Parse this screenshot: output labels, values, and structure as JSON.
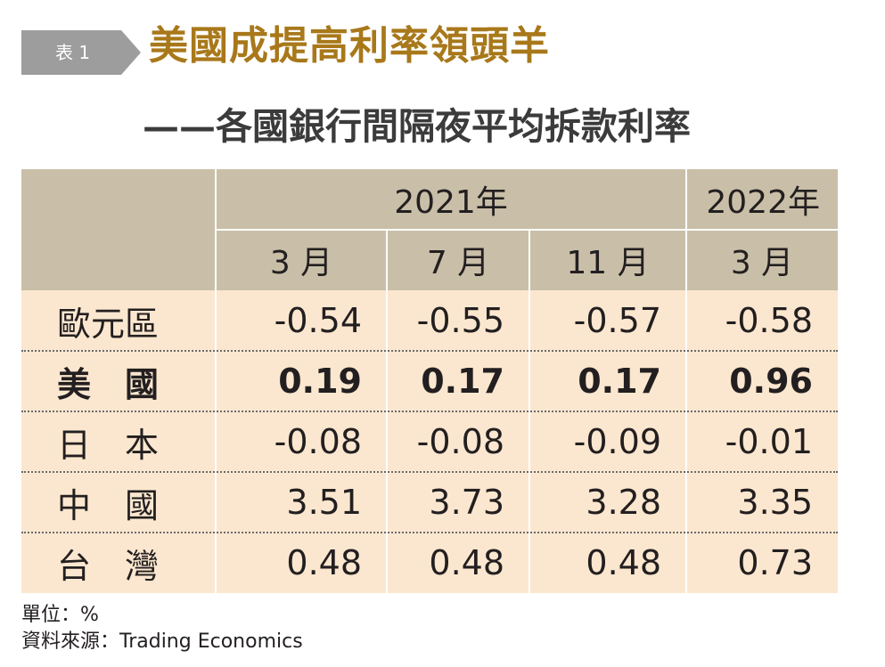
{
  "tag": "表 1",
  "title": "美國成提高利率領頭羊",
  "subtitle": "——各國銀行間隔夜平均拆款利率",
  "chart_data": {
    "type": "table",
    "year_headers": [
      {
        "label": "2021年",
        "span": 3
      },
      {
        "label": "2022年",
        "span": 1
      }
    ],
    "month_headers": [
      "3 月",
      "7 月",
      "11 月",
      "3 月"
    ],
    "rows": [
      {
        "label": "歐元區",
        "values": [
          "-0.54",
          "-0.55",
          "-0.57",
          "-0.58"
        ],
        "bold": false
      },
      {
        "label": "美　國",
        "values": [
          "0.19",
          "0.17",
          "0.17",
          "0.96"
        ],
        "bold": true
      },
      {
        "label": "日　本",
        "values": [
          "-0.08",
          "-0.08",
          "-0.09",
          "-0.01"
        ],
        "bold": false
      },
      {
        "label": "中　國",
        "values": [
          "3.51",
          "3.73",
          "3.28",
          "3.35"
        ],
        "bold": false
      },
      {
        "label": "台　灣",
        "values": [
          "0.48",
          "0.48",
          "0.48",
          "0.73"
        ],
        "bold": false
      }
    ]
  },
  "notes": {
    "unit": "單位：%",
    "source": "資料來源：Trading Economics"
  },
  "colors": {
    "header_bg": "#c9bfa8",
    "body_bg": "#fbe7cf",
    "title": "#a8781a",
    "tag_bg": "#9d9d9d"
  }
}
